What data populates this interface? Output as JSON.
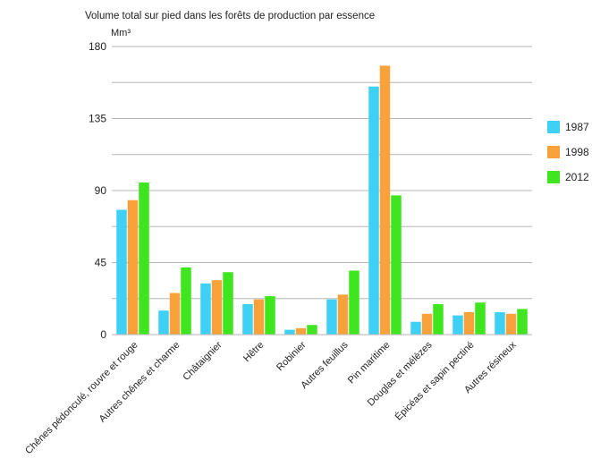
{
  "chart_data": {
    "type": "bar",
    "title": "Volume total sur pied dans les forêts de production par essence",
    "ylabel": "Mm³",
    "xlabel": "",
    "ylim": [
      0,
      180
    ],
    "yticks": [
      0,
      45,
      90,
      135,
      180
    ],
    "gridlines": [
      22.5,
      45,
      67.5,
      90,
      112.5,
      135,
      157.5,
      180
    ],
    "grid": true,
    "legend_position": "right",
    "categories": [
      "Chênes pédonculé, rouvre et rouge",
      "Autres chênes et charme",
      "Châtaignier",
      "Hêtre",
      "Robinier",
      "Autres feuillus",
      "Pin maritime",
      "Douglas et mélèzes",
      "Épicéas et sapin pectiné",
      "Autres résineux"
    ],
    "series": [
      {
        "name": "1987",
        "color": "#3fd1f5",
        "values": [
          78,
          15,
          32,
          19,
          3,
          22,
          155,
          8,
          12,
          14
        ]
      },
      {
        "name": "1998",
        "color": "#f9a23b",
        "values": [
          84,
          26,
          34,
          22,
          4,
          25,
          168,
          13,
          14,
          13
        ]
      },
      {
        "name": "2012",
        "color": "#3fe61f",
        "values": [
          95,
          42,
          39,
          24,
          6,
          40,
          87,
          19,
          20,
          16
        ]
      }
    ]
  }
}
